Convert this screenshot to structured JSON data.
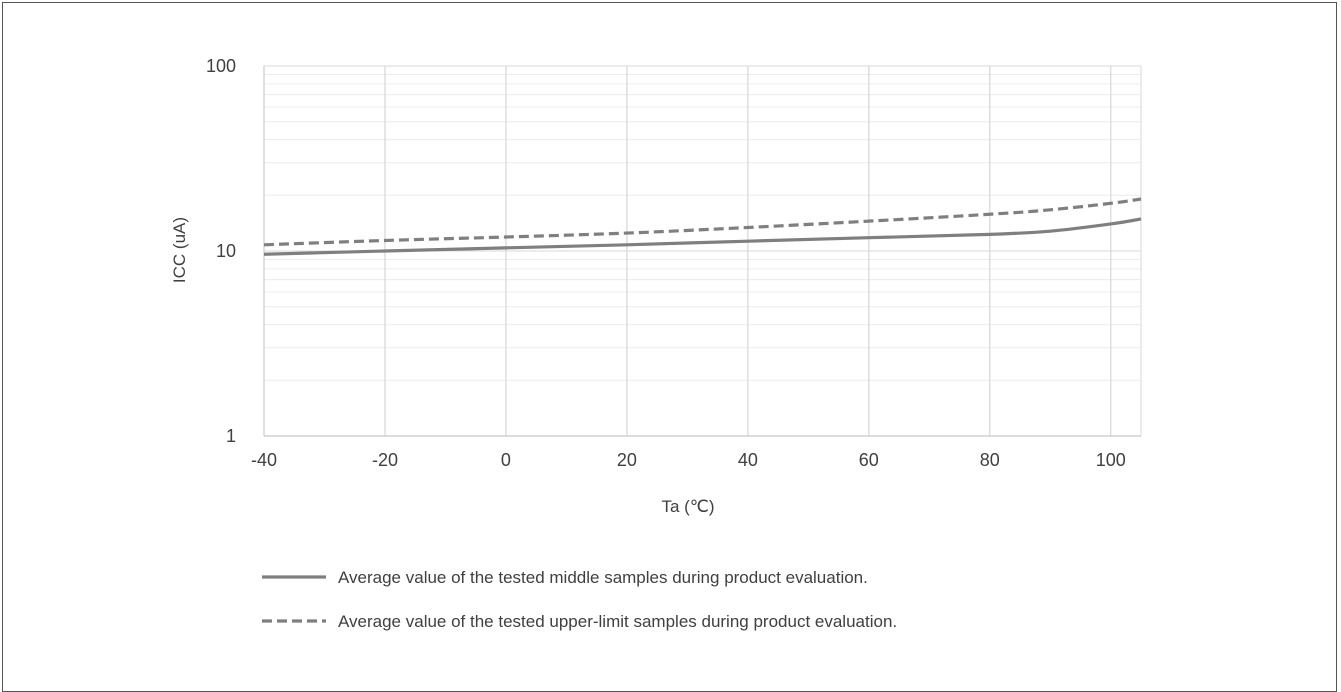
{
  "chart_data": {
    "type": "line",
    "xlabel": "Ta (℃)",
    "ylabel": "ICC (uA)",
    "y_scale": "log",
    "xlim": [
      -40,
      105
    ],
    "ylim": [
      1,
      100
    ],
    "x_ticks": [
      -40,
      -20,
      0,
      20,
      40,
      60,
      80,
      100
    ],
    "y_ticks": [
      1,
      10,
      100
    ],
    "grid": true,
    "legend_position": "bottom",
    "series": [
      {
        "name": "Average value of the tested middle samples during product evaluation.",
        "style": "solid",
        "color": "#7f7f7f",
        "x": [
          -40,
          -20,
          0,
          20,
          40,
          60,
          80,
          90,
          100,
          105
        ],
        "y": [
          9.6,
          10.0,
          10.4,
          10.8,
          11.3,
          11.8,
          12.3,
          12.8,
          14.0,
          14.9
        ]
      },
      {
        "name": "Average value of the tested upper-limit samples during product evaluation.",
        "style": "dashed",
        "color": "#7f7f7f",
        "x": [
          -40,
          -20,
          0,
          20,
          40,
          60,
          80,
          90,
          100,
          105
        ],
        "y": [
          10.8,
          11.4,
          11.9,
          12.5,
          13.4,
          14.5,
          15.8,
          16.7,
          18.1,
          19.1
        ]
      }
    ]
  }
}
